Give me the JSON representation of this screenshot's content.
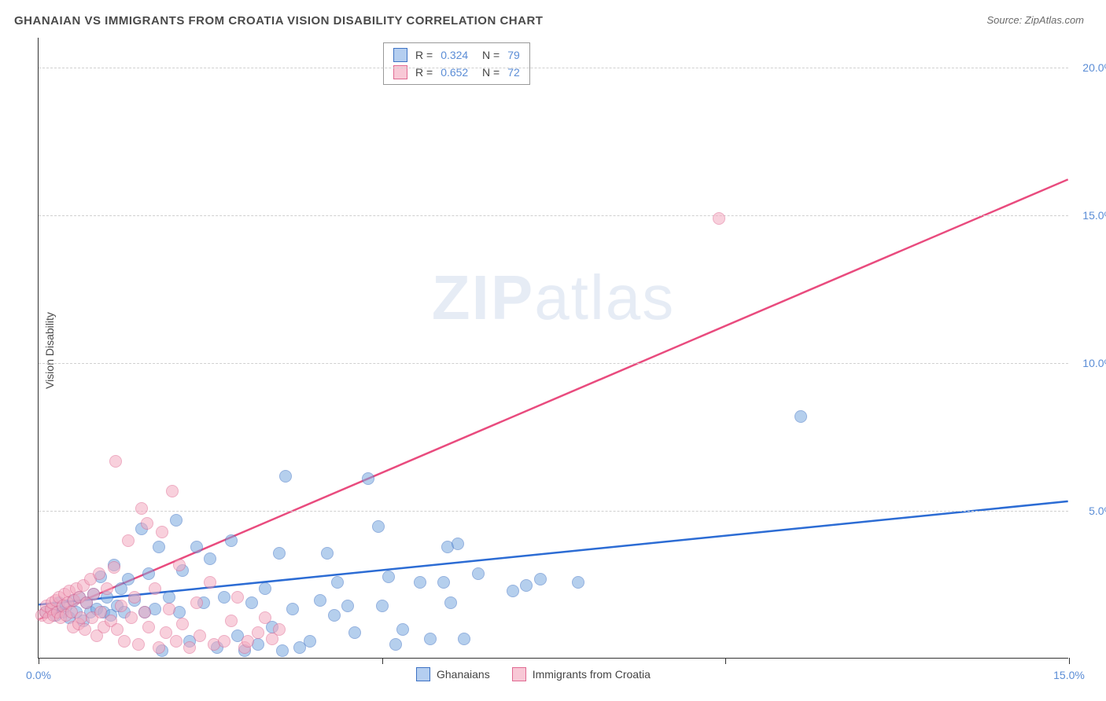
{
  "title": "GHANAIAN VS IMMIGRANTS FROM CROATIA VISION DISABILITY CORRELATION CHART",
  "source": "Source: ZipAtlas.com",
  "watermark": {
    "zip": "ZIP",
    "atlas": "atlas"
  },
  "ylabel": "Vision Disability",
  "chart": {
    "type": "scatter",
    "xlim": [
      0,
      15
    ],
    "ylim": [
      0,
      21
    ],
    "x_ticks": [
      0,
      5,
      10,
      15
    ],
    "x_tick_labels": [
      "0.0%",
      "",
      "",
      "15.0%"
    ],
    "y_ticks": [
      5,
      10,
      15,
      20
    ],
    "y_tick_labels": [
      "5.0%",
      "10.0%",
      "15.0%",
      "20.0%"
    ],
    "background_color": "#ffffff",
    "grid_color": "#d0d0d0",
    "axis_color": "#333333",
    "label_color": "#5b8dd6",
    "marker_radius": 8,
    "marker_opacity": 0.55,
    "series": [
      {
        "name": "Ghanaians",
        "color": "#7aa8e0",
        "border_color": "#3d72c4",
        "line_color": "#2c6cd4",
        "line": {
          "x1": 0,
          "y1": 1.8,
          "x2": 15,
          "y2": 5.3
        },
        "R": "0.324",
        "N": "79",
        "points": [
          [
            0.1,
            2.0
          ],
          [
            0.2,
            2.1
          ],
          [
            0.25,
            1.9
          ],
          [
            0.3,
            2.3
          ],
          [
            0.35,
            2.0
          ],
          [
            0.4,
            2.2
          ],
          [
            0.45,
            1.8
          ],
          [
            0.5,
            2.4
          ],
          [
            0.55,
            2.0
          ],
          [
            0.6,
            2.5
          ],
          [
            0.65,
            1.7
          ],
          [
            0.7,
            2.3
          ],
          [
            0.75,
            2.0
          ],
          [
            0.8,
            2.6
          ],
          [
            0.85,
            2.1
          ],
          [
            0.9,
            3.2
          ],
          [
            0.95,
            2.0
          ],
          [
            1.0,
            2.5
          ],
          [
            1.05,
            1.9
          ],
          [
            1.1,
            3.6
          ],
          [
            1.15,
            2.2
          ],
          [
            1.2,
            2.8
          ],
          [
            1.25,
            2.0
          ],
          [
            1.3,
            3.1
          ],
          [
            1.4,
            2.4
          ],
          [
            1.5,
            4.8
          ],
          [
            1.55,
            2.0
          ],
          [
            1.6,
            3.3
          ],
          [
            1.7,
            2.1
          ],
          [
            1.75,
            4.2
          ],
          [
            1.8,
            0.7
          ],
          [
            1.9,
            2.5
          ],
          [
            2.0,
            5.1
          ],
          [
            2.05,
            2.0
          ],
          [
            2.1,
            3.4
          ],
          [
            2.2,
            1.0
          ],
          [
            2.3,
            4.2
          ],
          [
            2.4,
            2.3
          ],
          [
            2.5,
            3.8
          ],
          [
            2.6,
            0.8
          ],
          [
            2.7,
            2.5
          ],
          [
            2.8,
            4.4
          ],
          [
            2.9,
            1.2
          ],
          [
            3.0,
            0.7
          ],
          [
            3.1,
            2.3
          ],
          [
            3.2,
            0.9
          ],
          [
            3.3,
            2.8
          ],
          [
            3.4,
            1.5
          ],
          [
            3.5,
            4.0
          ],
          [
            3.55,
            0.7
          ],
          [
            3.6,
            6.6
          ],
          [
            3.7,
            2.1
          ],
          [
            3.8,
            0.8
          ],
          [
            3.95,
            1.0
          ],
          [
            4.1,
            2.4
          ],
          [
            4.2,
            4.0
          ],
          [
            4.3,
            1.9
          ],
          [
            4.35,
            3.0
          ],
          [
            4.5,
            2.2
          ],
          [
            4.6,
            1.3
          ],
          [
            4.8,
            6.5
          ],
          [
            4.95,
            4.9
          ],
          [
            5.0,
            2.2
          ],
          [
            5.1,
            3.2
          ],
          [
            5.2,
            0.9
          ],
          [
            5.3,
            1.4
          ],
          [
            5.55,
            3.0
          ],
          [
            5.7,
            1.1
          ],
          [
            5.9,
            3.0
          ],
          [
            5.95,
            4.2
          ],
          [
            6.0,
            2.3
          ],
          [
            6.1,
            4.3
          ],
          [
            6.2,
            1.1
          ],
          [
            6.4,
            3.3
          ],
          [
            6.9,
            2.7
          ],
          [
            7.1,
            2.9
          ],
          [
            7.3,
            3.1
          ],
          [
            7.85,
            3.0
          ],
          [
            11.1,
            8.6
          ]
        ]
      },
      {
        "name": "Immigrants from Croatia",
        "color": "#f4aac0",
        "border_color": "#e06a92",
        "line_color": "#e94b7e",
        "line": {
          "x1": 0,
          "y1": 1.3,
          "x2": 15,
          "y2": 16.2
        },
        "R": "0.652",
        "N": "72",
        "points": [
          [
            0.05,
            1.9
          ],
          [
            0.1,
            2.0
          ],
          [
            0.12,
            2.2
          ],
          [
            0.15,
            1.8
          ],
          [
            0.18,
            2.1
          ],
          [
            0.2,
            2.3
          ],
          [
            0.22,
            1.9
          ],
          [
            0.25,
            2.4
          ],
          [
            0.28,
            2.0
          ],
          [
            0.3,
            2.5
          ],
          [
            0.32,
            1.8
          ],
          [
            0.35,
            2.2
          ],
          [
            0.38,
            2.6
          ],
          [
            0.4,
            1.9
          ],
          [
            0.42,
            2.3
          ],
          [
            0.45,
            2.7
          ],
          [
            0.48,
            2.0
          ],
          [
            0.5,
            1.5
          ],
          [
            0.52,
            2.4
          ],
          [
            0.55,
            2.8
          ],
          [
            0.58,
            1.6
          ],
          [
            0.6,
            2.5
          ],
          [
            0.62,
            1.8
          ],
          [
            0.65,
            2.9
          ],
          [
            0.68,
            1.4
          ],
          [
            0.7,
            2.3
          ],
          [
            0.75,
            3.1
          ],
          [
            0.78,
            1.8
          ],
          [
            0.8,
            2.6
          ],
          [
            0.85,
            1.2
          ],
          [
            0.88,
            3.3
          ],
          [
            0.9,
            2.0
          ],
          [
            0.95,
            1.5
          ],
          [
            1.0,
            2.8
          ],
          [
            1.05,
            1.7
          ],
          [
            1.1,
            3.5
          ],
          [
            1.12,
            7.1
          ],
          [
            1.15,
            1.4
          ],
          [
            1.2,
            2.2
          ],
          [
            1.25,
            1.0
          ],
          [
            1.3,
            4.4
          ],
          [
            1.35,
            1.8
          ],
          [
            1.4,
            2.5
          ],
          [
            1.45,
            0.9
          ],
          [
            1.5,
            5.5
          ],
          [
            1.55,
            2.0
          ],
          [
            1.58,
            5.0
          ],
          [
            1.6,
            1.5
          ],
          [
            1.7,
            2.8
          ],
          [
            1.75,
            0.8
          ],
          [
            1.8,
            4.7
          ],
          [
            1.85,
            1.3
          ],
          [
            1.9,
            2.1
          ],
          [
            1.95,
            6.1
          ],
          [
            2.0,
            1.0
          ],
          [
            2.05,
            3.6
          ],
          [
            2.1,
            1.6
          ],
          [
            2.2,
            0.8
          ],
          [
            2.3,
            2.3
          ],
          [
            2.35,
            1.2
          ],
          [
            2.5,
            3.0
          ],
          [
            2.55,
            0.9
          ],
          [
            2.7,
            1.0
          ],
          [
            2.8,
            1.7
          ],
          [
            2.9,
            2.5
          ],
          [
            3.0,
            0.8
          ],
          [
            3.05,
            1.0
          ],
          [
            3.2,
            1.3
          ],
          [
            3.3,
            1.8
          ],
          [
            3.4,
            1.1
          ],
          [
            3.5,
            1.4
          ],
          [
            9.9,
            15.3
          ]
        ]
      }
    ]
  },
  "legend_bottom": [
    {
      "label": "Ghanaians",
      "fill": "#b4cef0",
      "border": "#3d72c4"
    },
    {
      "label": "Immigrants from Croatia",
      "fill": "#f8c8d6",
      "border": "#e06a92"
    }
  ]
}
